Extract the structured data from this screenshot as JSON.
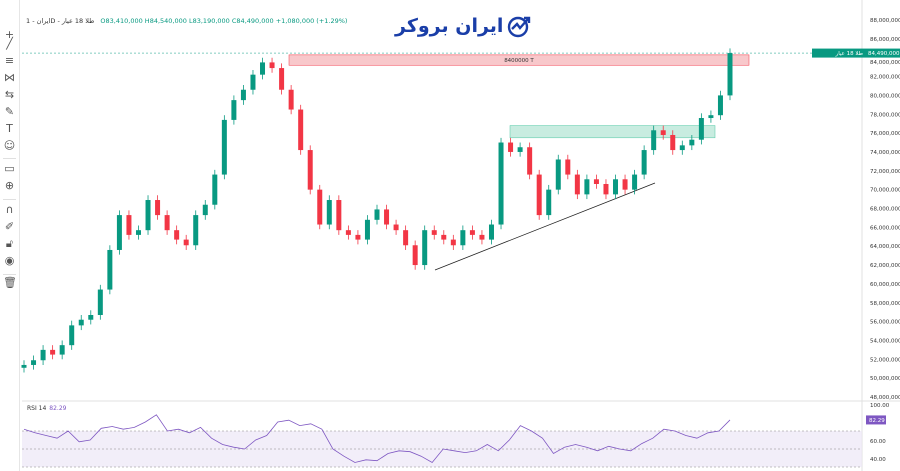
{
  "header": {
    "symbol": "ایران - 1D - طلا 18 عیار",
    "ohlc": "O83,410,000 H84,540,000 L83,190,000 C84,490,000 +1,080,000 (+1.29%)"
  },
  "logo": {
    "text": "ایران بروکر"
  },
  "toolbar": {
    "icons": [
      "crosshair-icon",
      "trend-line-icon",
      "fib-retracement-icon",
      "pattern-icon",
      "measure-icon",
      "brush-icon",
      "text-icon",
      "emoji-icon",
      "ruler-icon",
      "zoom-in-icon",
      "magnet-icon",
      "lock-drawing-icon",
      "lock-icon",
      "eye-icon",
      "trash-icon"
    ]
  },
  "colors": {
    "up": "#089981",
    "down": "#f23645",
    "rsi": "#7e57c2",
    "resistance_zone": "#f8c8cb",
    "support_zone": "#c8ece0"
  },
  "chart_data": {
    "type": "candlestick",
    "ylim": [
      48000000,
      88000000
    ],
    "y_ticks": [
      "88,000,000",
      "86,000,000",
      "84,000,000",
      "82,000,000",
      "80,000,000",
      "78,000,000",
      "76,000,000",
      "74,000,000",
      "72,000,000",
      "70,000,000",
      "68,000,000",
      "66,000,000",
      "64,000,000",
      "62,000,000",
      "60,000,000",
      "58,000,000",
      "56,000,000",
      "54,000,000",
      "52,000,000",
      "50,000,000",
      "48,000,000"
    ],
    "closes_millions": [
      51.4,
      51.9,
      53,
      52.5,
      53.5,
      55.6,
      56.2,
      56.7,
      59.4,
      63.6,
      67.3,
      65.2,
      65.7,
      68.9,
      67.3,
      65.7,
      64.7,
      64.1,
      67.3,
      68.4,
      71.6,
      77.4,
      79.5,
      80.6,
      82.2,
      83.5,
      82.9,
      80.6,
      78.5,
      74.2,
      70,
      66.3,
      68.9,
      65.7,
      65.2,
      64.7,
      66.8,
      67.9,
      66.3,
      65.7,
      64.1,
      62,
      65.7,
      65.2,
      64.7,
      64.1,
      65.7,
      65.2,
      64.7,
      66.3,
      75,
      74,
      74.5,
      71.6,
      67.3,
      70,
      73.2,
      71.6,
      69.5,
      71.1,
      70.6,
      69.5,
      71.1,
      70,
      71.6,
      74.2,
      76.3,
      75.8,
      74.2,
      74.7,
      75.3,
      77.6,
      77.9,
      80,
      84.49
    ],
    "last_price_label": "84,490,000",
    "last_price_tag": "طلا 18 عیار",
    "resistance_zone": {
      "label": "8400000 T",
      "from": 83200000,
      "to": 84300000
    },
    "support_zone": {
      "from": 75500000,
      "to": 76800000
    },
    "rsi": {
      "title": "RSI 14",
      "value": "82.29",
      "ylim": [
        30,
        100
      ],
      "levels": [
        70,
        50,
        30
      ],
      "y_ticks": [
        "100.00",
        "60.00",
        "40.00"
      ],
      "values": [
        72,
        68,
        65,
        62,
        70,
        58,
        60,
        73,
        75,
        72,
        74,
        80,
        88,
        70,
        72,
        68,
        74,
        62,
        55,
        52,
        50,
        60,
        65,
        80,
        82,
        76,
        78,
        72,
        50,
        42,
        35,
        38,
        37,
        45,
        48,
        47,
        42,
        35,
        50,
        48,
        46,
        48,
        55,
        48,
        60,
        76,
        70,
        62,
        45,
        52,
        55,
        52,
        48,
        53,
        50,
        48,
        56,
        62,
        72,
        70,
        65,
        62,
        68,
        70,
        82.29
      ]
    }
  }
}
